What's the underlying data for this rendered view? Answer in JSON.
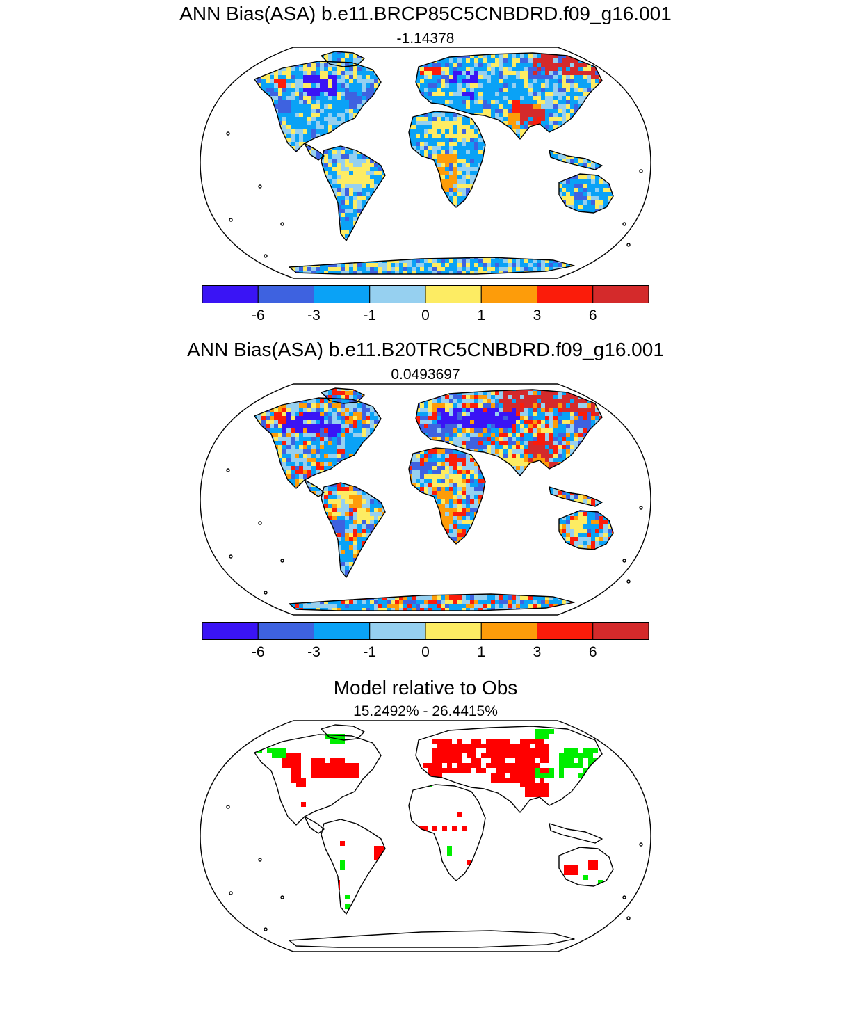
{
  "panels": [
    {
      "title": "ANN Bias(ASA) b.e11.BRCP85C5CNBDRD.f09_g16.001",
      "subtitle": "-1.14378",
      "pattern": "bias_rcp85"
    },
    {
      "title": "ANN Bias(ASA) b.e11.B20TRC5CNBDRD.f09_g16.001",
      "subtitle": "0.0493697",
      "pattern": "bias_20tr"
    },
    {
      "title": "Model relative to Obs",
      "subtitle": "15.2492% - 26.4415%",
      "pattern": "relative"
    }
  ],
  "colorbar": {
    "colors": [
      "#3a14f5",
      "#3e62e0",
      "#0aa2f6",
      "#96d0f0",
      "#fdec63",
      "#fd9c0a",
      "#fb1c0a",
      "#d42a2b"
    ],
    "tick_labels": [
      "-6",
      "-3",
      "-1",
      "0",
      "1",
      "3",
      "6"
    ]
  },
  "relative_colors": {
    "red": "#ff0000",
    "green": "#00ee00"
  }
}
